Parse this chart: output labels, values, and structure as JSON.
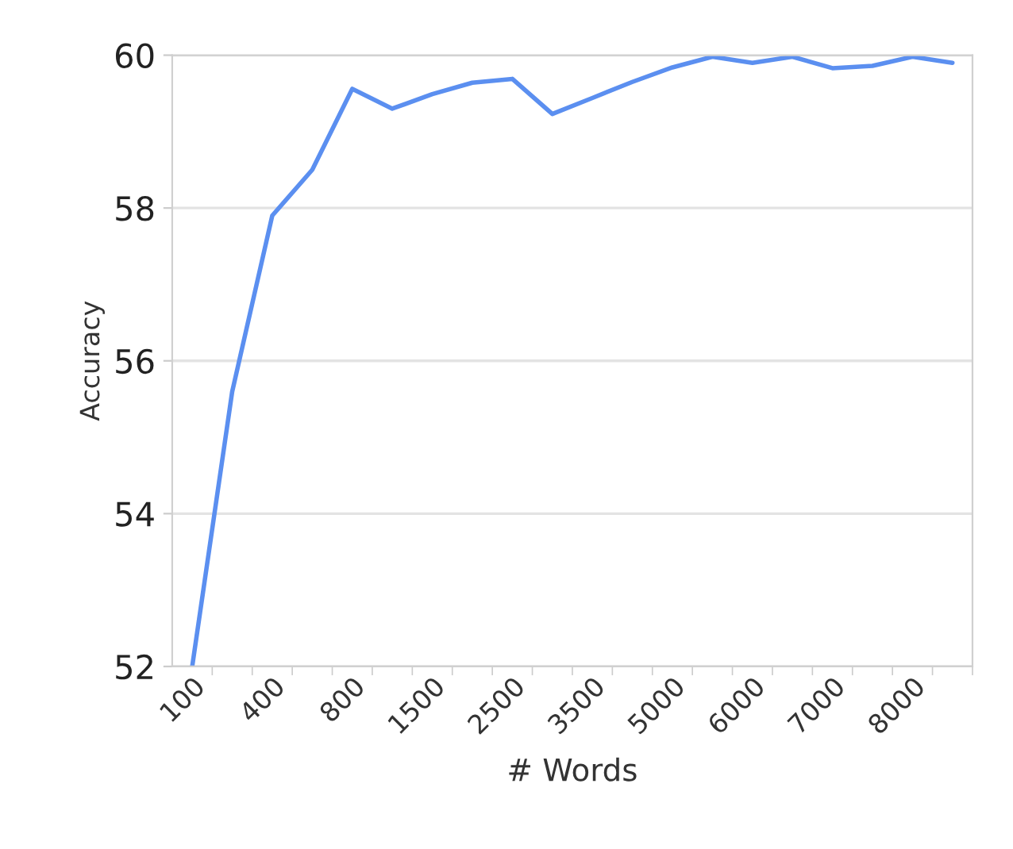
{
  "chart_data": {
    "type": "line",
    "xlabel": "# Words",
    "ylabel": "Accuracy",
    "categories": [
      "100",
      null,
      "400",
      null,
      "800",
      null,
      "1500",
      null,
      "2500",
      null,
      "3500",
      null,
      "5000",
      null,
      "6000",
      null,
      "7000",
      null,
      "8000",
      null
    ],
    "series": [
      {
        "color": "#5b8ff0",
        "values": [
          52.0,
          55.6,
          57.9,
          58.5,
          59.56,
          59.3,
          59.49,
          59.64,
          59.69,
          59.23,
          59.44,
          59.65,
          59.84,
          59.98,
          59.9,
          59.98,
          59.83,
          59.86,
          59.98,
          59.9
        ]
      }
    ],
    "ylim": [
      52,
      60
    ],
    "yticks": [
      52,
      54,
      56,
      58,
      60
    ],
    "grid": "y",
    "marker": "none",
    "line_style": "solid"
  }
}
